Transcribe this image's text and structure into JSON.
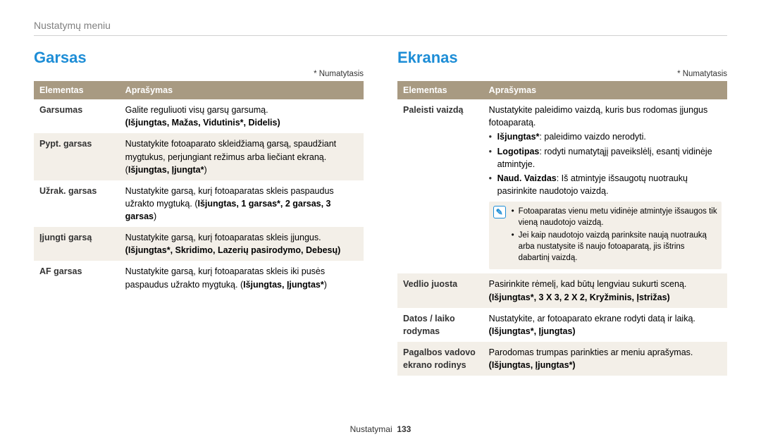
{
  "breadcrumb": "Nustatymų meniu",
  "default_note": "* Numatytasis",
  "footer": {
    "section": "Nustatymai",
    "page": "133"
  },
  "colors": {
    "title": "#1d8dd6",
    "header_bg": "#a89a82",
    "header_fg": "#ffffff",
    "row_alt_bg": "#f3efe8",
    "text": "#333333",
    "gray": "#808080"
  },
  "left": {
    "title": "Garsas",
    "headers": {
      "element": "Elementas",
      "desc": "Aprašymas"
    },
    "rows": [
      {
        "label": "Garsumas",
        "text1": "Galite reguliuoti visų garsų garsumą.",
        "bold1": "(Išjungtas, Mažas, Vidutinis*, Didelis)"
      },
      {
        "label": "Pypt. garsas",
        "text1": "Nustatykite fotoaparato skleidžiamą garsą, spaudžiant mygtukus, perjungiant režimus arba liečiant ekraną. (",
        "bold1": "Išjungtas, Įjungta*",
        "text2": ")"
      },
      {
        "label": "Užrak. garsas",
        "text1": "Nustatykite garsą, kurį fotoaparatas skleis paspaudus užrakto mygtuką. (",
        "bold1": "Išjungtas, 1 garsas*, 2 garsas, 3 garsas",
        "text2": ")"
      },
      {
        "label": "Įjungti garsą",
        "text1": "Nustatykite garsą, kurį fotoaparatas skleis įjungus.",
        "bold1": "(Išjungtas*, Skridimo, Lazerių pasirodymo, Debesų)"
      },
      {
        "label": "AF garsas",
        "text1": "Nustatykite garsą, kurį fotoaparatas skleis iki pusės paspaudus užrakto mygtuką. (",
        "bold1": "Išjungtas, Įjungtas*",
        "text2": ")"
      }
    ]
  },
  "right": {
    "title": "Ekranas",
    "headers": {
      "element": "Elementas",
      "desc": "Aprašymas"
    },
    "rows": [
      {
        "label": "Paleisti vaizdą",
        "intro": "Nustatykite paleidimo vaizdą, kuris bus rodomas įjungus fotoaparatą.",
        "bullets": [
          {
            "b": "Išjungtas*",
            "t": ": paleidimo vaizdo nerodyti."
          },
          {
            "b": "Logotipas",
            "t": ": rodyti numatytąjį paveikslėlį, esantį vidinėje atmintyje."
          },
          {
            "b": "Naud. Vaizdas",
            "t": ": Iš atmintyje išsaugotų nuotraukų pasirinkite naudotojo vaizdą."
          }
        ],
        "note": [
          "Fotoaparatas vienu metu vidinėje atmintyje išsaugos tik vieną naudotojo vaizdą.",
          "Jei kaip naudotojo vaizdą parinksite naują nuotrauką arba nustatysite iš naujo fotoaparatą, jis ištrins dabartinį vaizdą."
        ]
      },
      {
        "label": "Vedlio juosta",
        "text1": "Pasirinkite rėmelį, kad būtų lengviau sukurti sceną.",
        "bold1": "(Išjungtas*, 3 X 3, 2 X 2, Kryžminis, Įstrižas)"
      },
      {
        "label": "Datos / laiko rodymas",
        "text1": "Nustatykite, ar fotoaparato ekrane rodyti datą ir laiką.",
        "bold1": "(Išjungtas*, Įjungtas)"
      },
      {
        "label": "Pagalbos vadovo ekrano rodinys",
        "text1": "Parodomas trumpas parinkties ar meniu aprašymas.",
        "bold1": "(Išjungtas, Įjungtas*)"
      }
    ]
  }
}
